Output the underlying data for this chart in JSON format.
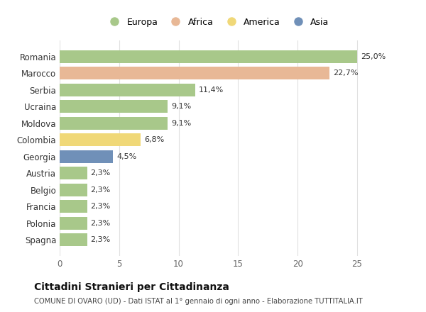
{
  "categories": [
    "Romania",
    "Marocco",
    "Serbia",
    "Ucraina",
    "Moldova",
    "Colombia",
    "Georgia",
    "Austria",
    "Belgio",
    "Francia",
    "Polonia",
    "Spagna"
  ],
  "values": [
    25.0,
    22.7,
    11.4,
    9.1,
    9.1,
    6.8,
    4.5,
    2.3,
    2.3,
    2.3,
    2.3,
    2.3
  ],
  "labels": [
    "25,0%",
    "22,7%",
    "11,4%",
    "9,1%",
    "9,1%",
    "6,8%",
    "4,5%",
    "2,3%",
    "2,3%",
    "2,3%",
    "2,3%",
    "2,3%"
  ],
  "colors": [
    "#a8c88a",
    "#e8b896",
    "#a8c88a",
    "#a8c88a",
    "#a8c88a",
    "#f0d878",
    "#7090b8",
    "#a8c88a",
    "#a8c88a",
    "#a8c88a",
    "#a8c88a",
    "#a8c88a"
  ],
  "legend": [
    {
      "label": "Europa",
      "color": "#a8c88a"
    },
    {
      "label": "Africa",
      "color": "#e8b896"
    },
    {
      "label": "America",
      "color": "#f0d878"
    },
    {
      "label": "Asia",
      "color": "#7090b8"
    }
  ],
  "xlim": [
    0,
    26.5
  ],
  "xticks": [
    0,
    5,
    10,
    15,
    20,
    25
  ],
  "title": "Cittadini Stranieri per Cittadinanza",
  "subtitle": "COMUNE DI OVARO (UD) - Dati ISTAT al 1° gennaio di ogni anno - Elaborazione TUTTITALIA.IT",
  "bg_color": "#ffffff",
  "grid_color": "#e0e0e0"
}
